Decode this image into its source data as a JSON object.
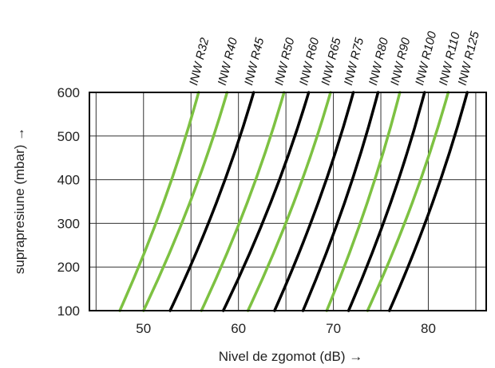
{
  "chart_data": {
    "type": "line",
    "xlabel": "Nivel de zgomot (dB) →",
    "ylabel": "suprapresiune  (mbar) →",
    "xlim": [
      44.3,
      86.1
    ],
    "ylim": [
      100,
      600
    ],
    "xticks": [
      50,
      60,
      70,
      80
    ],
    "yticks": [
      100,
      200,
      300,
      400,
      500,
      600
    ],
    "grid": true,
    "colors": {
      "green": "#7dc142",
      "black": "#000000"
    },
    "series": [
      {
        "name": "INW R32",
        "color": "green",
        "x": [
          47.5,
          55.8
        ],
        "y": [
          100,
          600
        ]
      },
      {
        "name": "INW R40",
        "color": "green",
        "x": [
          50.0,
          58.8
        ],
        "y": [
          100,
          600
        ]
      },
      {
        "name": "INW R45",
        "color": "black",
        "x": [
          52.8,
          61.6
        ],
        "y": [
          100,
          600
        ]
      },
      {
        "name": "INW R50",
        "color": "green",
        "x": [
          56.1,
          64.8
        ],
        "y": [
          100,
          600
        ]
      },
      {
        "name": "INW R60",
        "color": "black",
        "x": [
          58.4,
          67.4
        ],
        "y": [
          100,
          600
        ]
      },
      {
        "name": "INW R65",
        "color": "green",
        "x": [
          61.0,
          69.7
        ],
        "y": [
          100,
          600
        ]
      },
      {
        "name": "INW R75",
        "color": "black",
        "x": [
          63.8,
          72.1
        ],
        "y": [
          100,
          600
        ]
      },
      {
        "name": "INW R80",
        "color": "black",
        "x": [
          66.8,
          74.7
        ],
        "y": [
          100,
          600
        ]
      },
      {
        "name": "INW R90",
        "color": "green",
        "x": [
          69.3,
          77.0
        ],
        "y": [
          100,
          600
        ]
      },
      {
        "name": "INW R100",
        "color": "black",
        "x": [
          71.6,
          79.6
        ],
        "y": [
          100,
          600
        ]
      },
      {
        "name": "INW R110",
        "color": "green",
        "x": [
          73.6,
          82.1
        ],
        "y": [
          100,
          600
        ]
      },
      {
        "name": "INW R125",
        "color": "black",
        "x": [
          75.9,
          84.1
        ],
        "y": [
          100,
          600
        ]
      }
    ]
  }
}
